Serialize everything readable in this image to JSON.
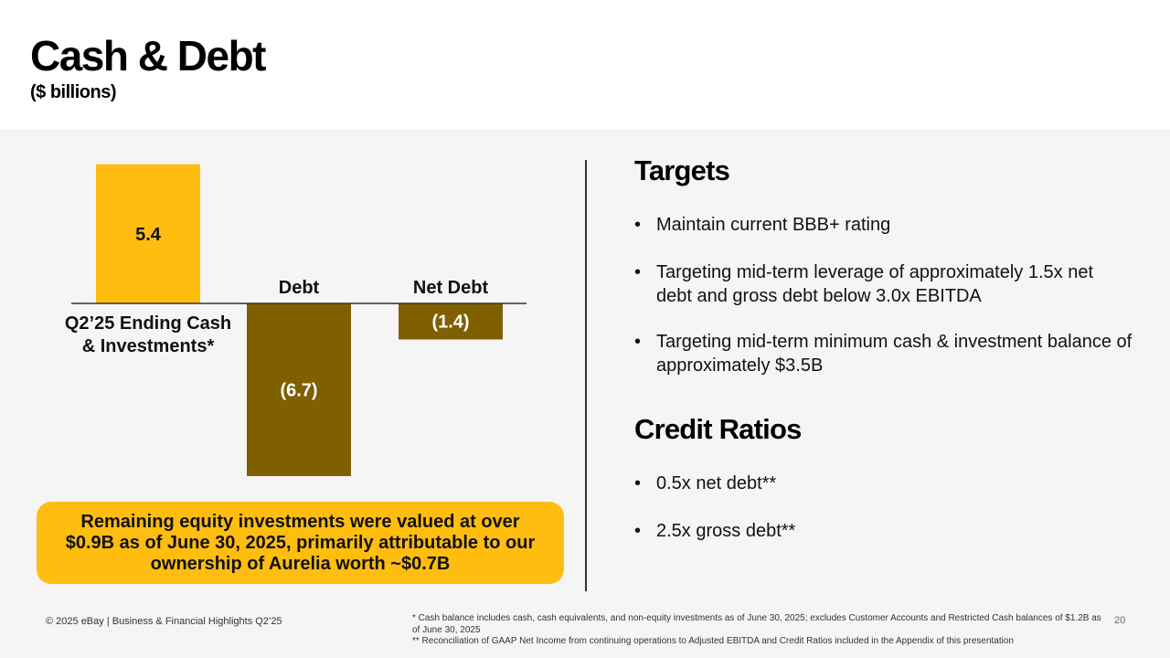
{
  "header": {
    "title": "Cash & Debt",
    "subtitle": "($ billions)"
  },
  "chart_data": {
    "type": "bar",
    "categories": [
      "Q2’25 Ending Cash & Investments*",
      "Debt",
      "Net Debt"
    ],
    "category_lines": [
      [
        "Q2’25 Ending Cash",
        "& Investments*"
      ],
      [
        "Debt"
      ],
      [
        "Net Debt"
      ]
    ],
    "values": [
      5.4,
      -6.7,
      -1.4
    ],
    "data_labels": [
      "5.4",
      "(6.7)",
      "(1.4)"
    ],
    "colors": [
      "#ffbd10",
      "#7f6000",
      "#7f6000"
    ],
    "label_colors": [
      "#111111",
      "#ffffff",
      "#ffffff"
    ],
    "title": "",
    "xlabel": "",
    "ylabel": "",
    "grid": false,
    "legend": "none"
  },
  "callout": {
    "text": "Remaining equity investments were valued at over $0.9B as of June 30, 2025, primarily attributable to our ownership of Aurelia worth ~$0.7B"
  },
  "targets": {
    "heading": "Targets",
    "bullets": [
      "Maintain current BBB+ rating",
      "Targeting mid-term leverage of approximately 1.5x net debt and gross debt below 3.0x EBITDA",
      "Targeting mid-term minimum cash & investment balance of approximately $3.5B"
    ]
  },
  "credit": {
    "heading": "Credit Ratios",
    "bullets": [
      "0.5x net debt**",
      "2.5x gross debt**"
    ]
  },
  "bullet_symbol": "•",
  "footer": {
    "left": "© 2025 eBay | Business & Financial Highlights Q2’25",
    "note1": "* Cash balance includes cash, cash equivalents, and non-equity investments as of June 30, 2025; excludes Customer Accounts and Restricted Cash balances of $1.2B as of June 30, 2025",
    "note2": "** Reconciliation of GAAP Net Income from continuing operations to Adjusted EBITDA and Credit Ratios included in the Appendix of this presentation",
    "page": "20"
  }
}
